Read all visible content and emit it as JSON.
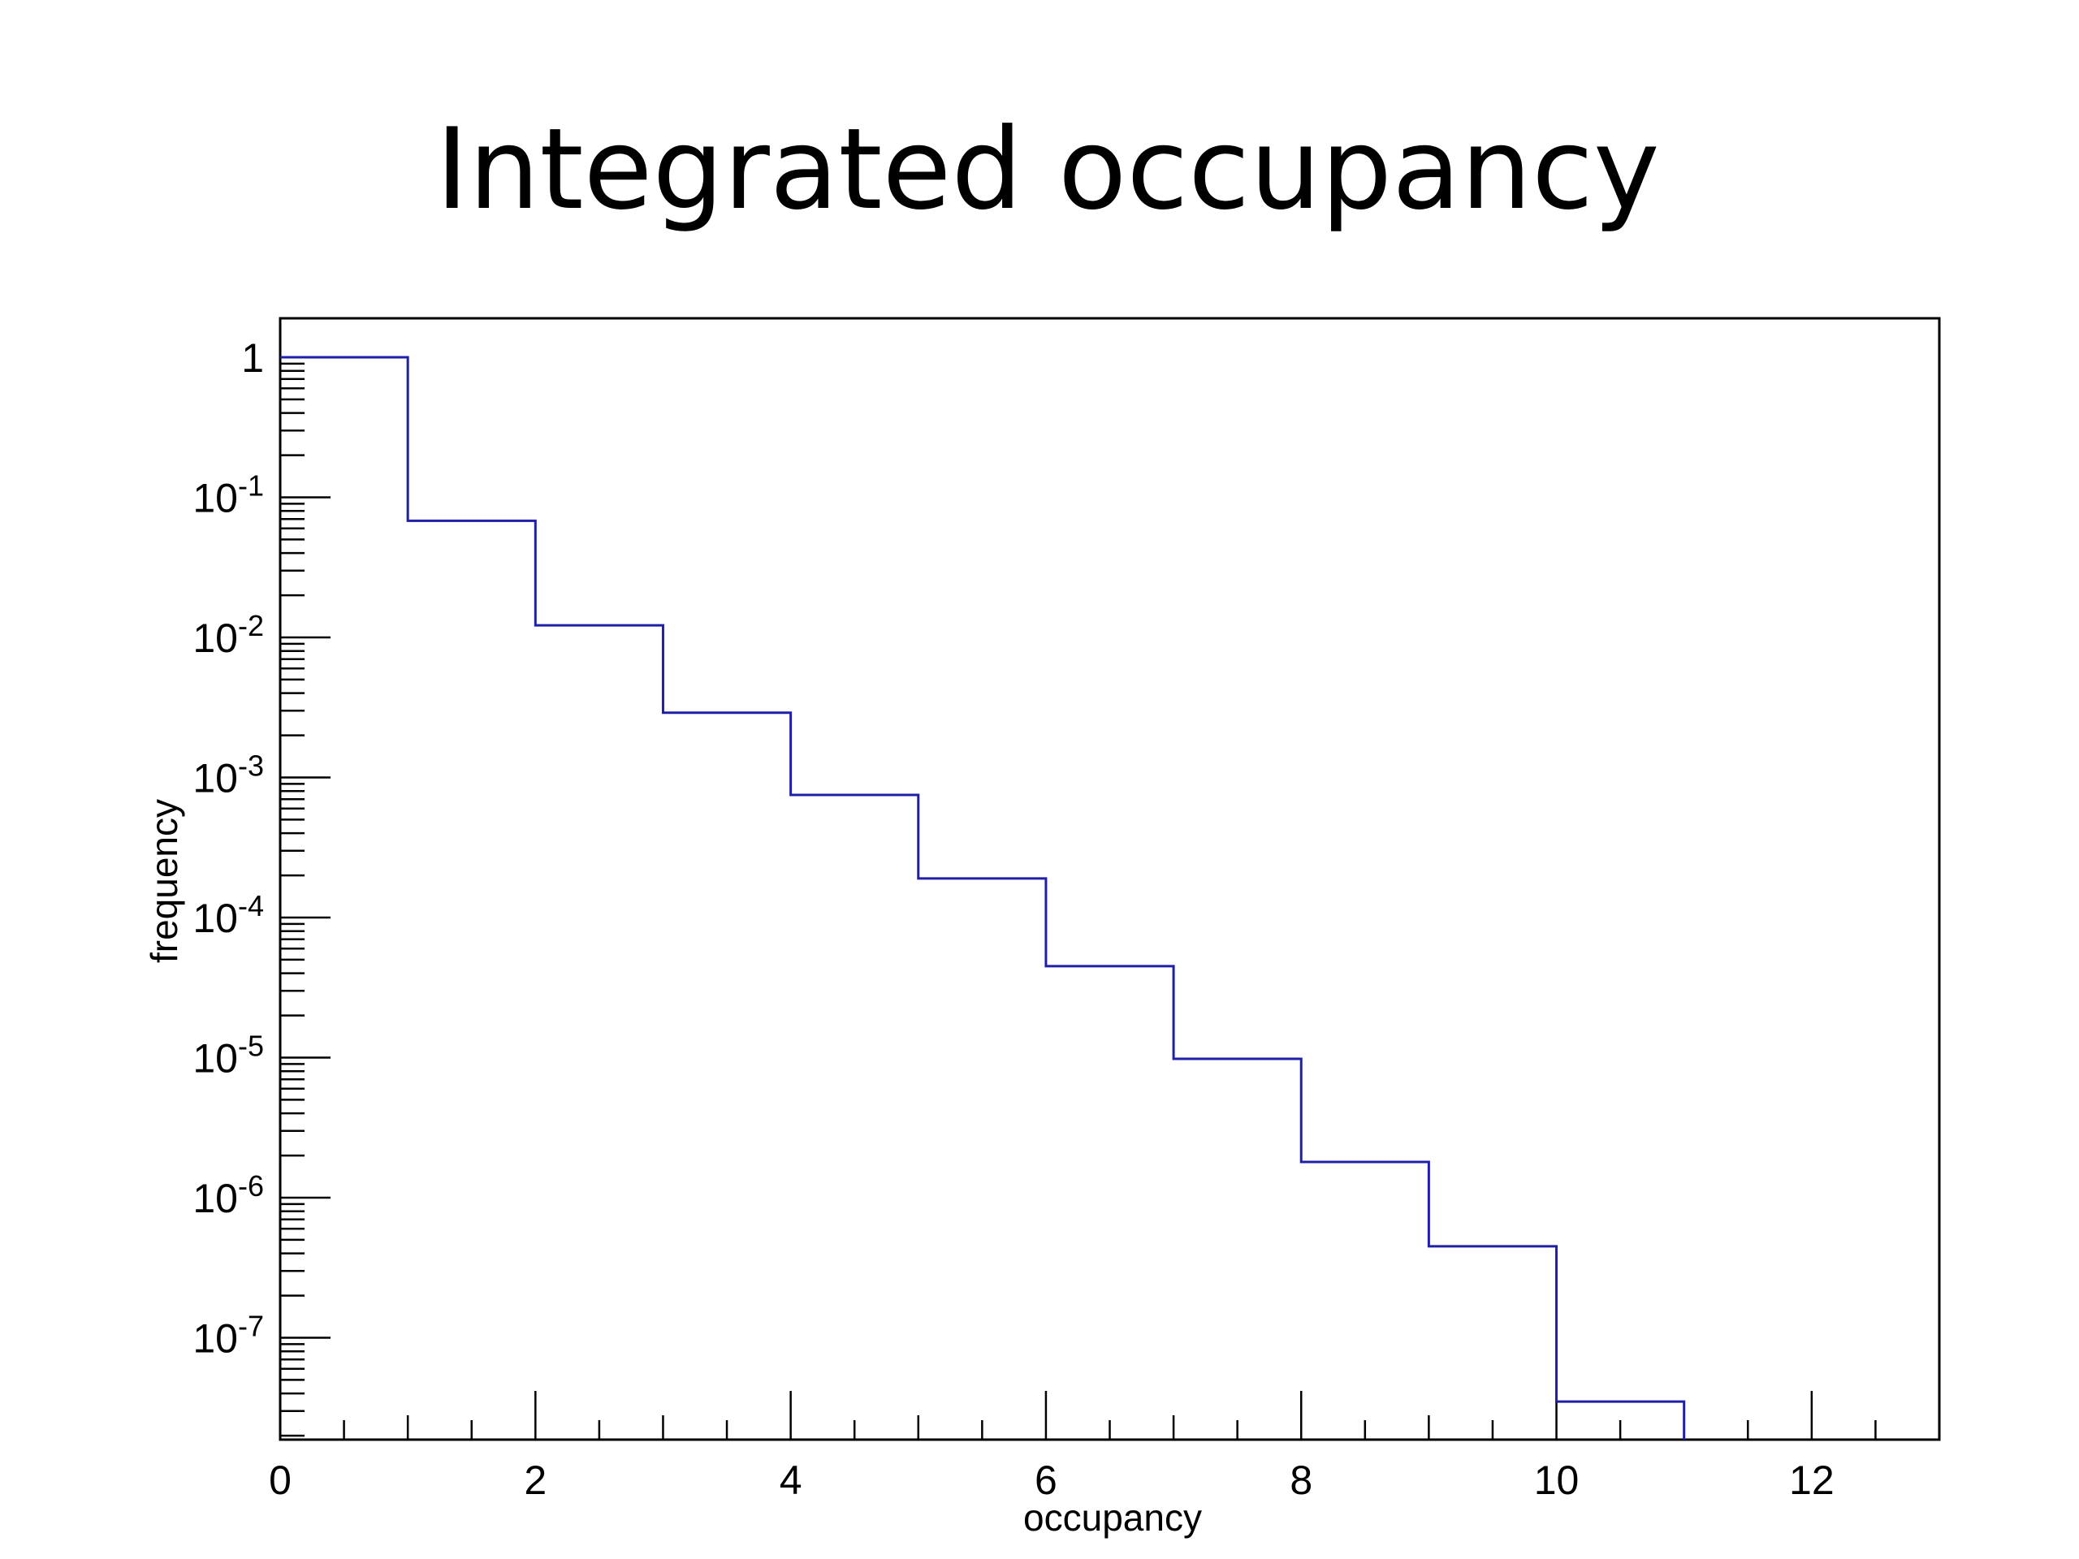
{
  "slide": {
    "title": "Integrated occupancy"
  },
  "chart_data": {
    "type": "histogram",
    "title": "",
    "xlabel": "occupancy",
    "ylabel": "frequency",
    "xlim": [
      0,
      13
    ],
    "ylim": [
      2e-08,
      2
    ],
    "y_scale": "log",
    "grid": false,
    "legend": "none",
    "line_color": "#1f1fa8",
    "x_ticks": [
      "0",
      "2",
      "4",
      "6",
      "8",
      "10",
      "12"
    ],
    "y_ticks": [
      {
        "base": "1",
        "exp": ""
      },
      {
        "base": "10",
        "exp": "-1"
      },
      {
        "base": "10",
        "exp": "-2"
      },
      {
        "base": "10",
        "exp": "-3"
      },
      {
        "base": "10",
        "exp": "-4"
      },
      {
        "base": "10",
        "exp": "-5"
      },
      {
        "base": "10",
        "exp": "-6"
      },
      {
        "base": "10",
        "exp": "-7"
      }
    ],
    "bin_edges": [
      0,
      1,
      2,
      3,
      4,
      5,
      6,
      7,
      8,
      9,
      10,
      11
    ],
    "values": [
      1,
      0.068,
      0.0122,
      0.0029,
      0.00075,
      0.00019,
      4.5e-05,
      9.8e-06,
      1.8e-06,
      4.5e-07,
      3.5e-08
    ]
  }
}
